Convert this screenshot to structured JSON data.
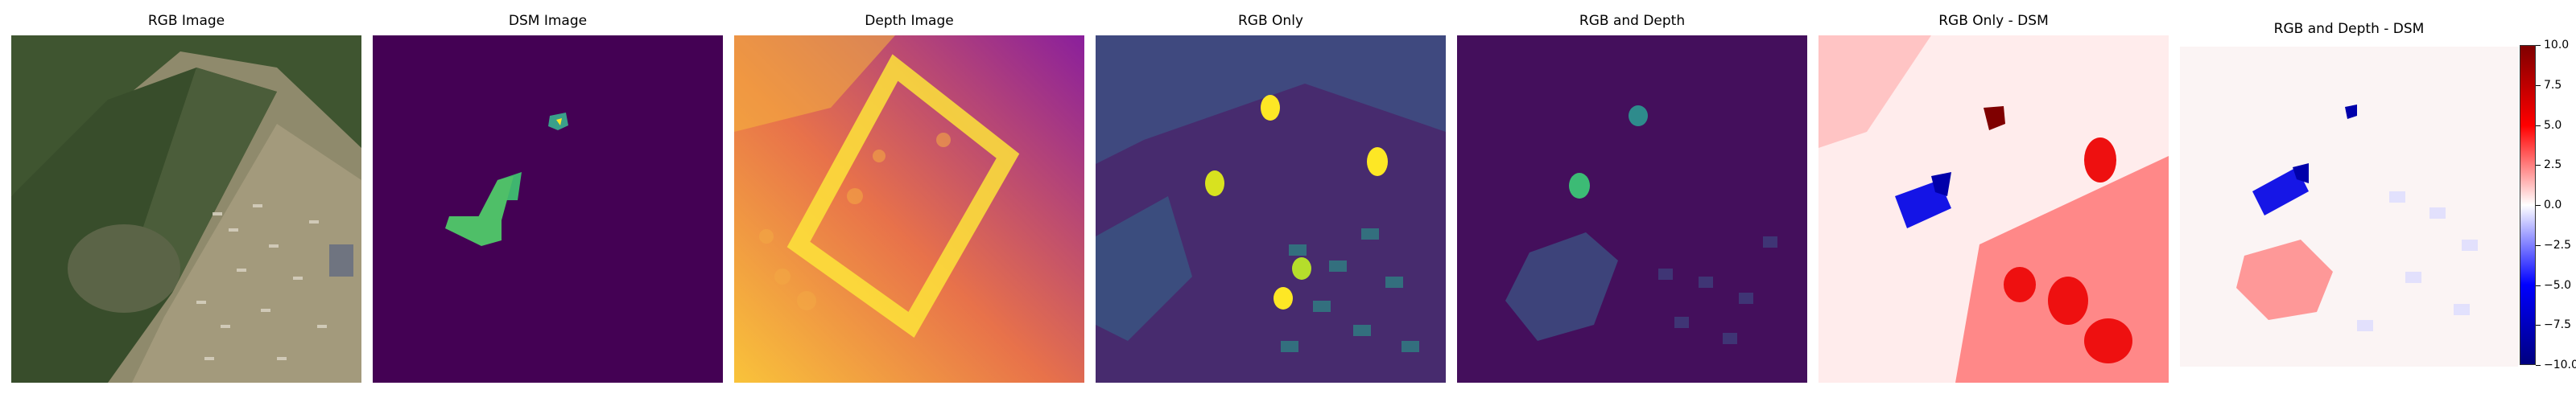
{
  "panels": [
    {
      "title": "RGB Image"
    },
    {
      "title": "DSM Image"
    },
    {
      "title": "Depth Image"
    },
    {
      "title": "RGB Only"
    },
    {
      "title": "RGB and Depth"
    },
    {
      "title": "RGB Only - DSM"
    },
    {
      "title": "RGB and Depth - DSM"
    }
  ],
  "colorbar": {
    "ticks": [
      "10.0",
      "7.5",
      "5.0",
      "2.5",
      "0.0",
      "−2.5",
      "−5.0",
      "−7.5",
      "−10.0"
    ],
    "min": -10.0,
    "max": 10.0,
    "colors": [
      "#7f0000",
      "#ff0000",
      "#ffffff",
      "#0000ff",
      "#00007f"
    ]
  }
}
